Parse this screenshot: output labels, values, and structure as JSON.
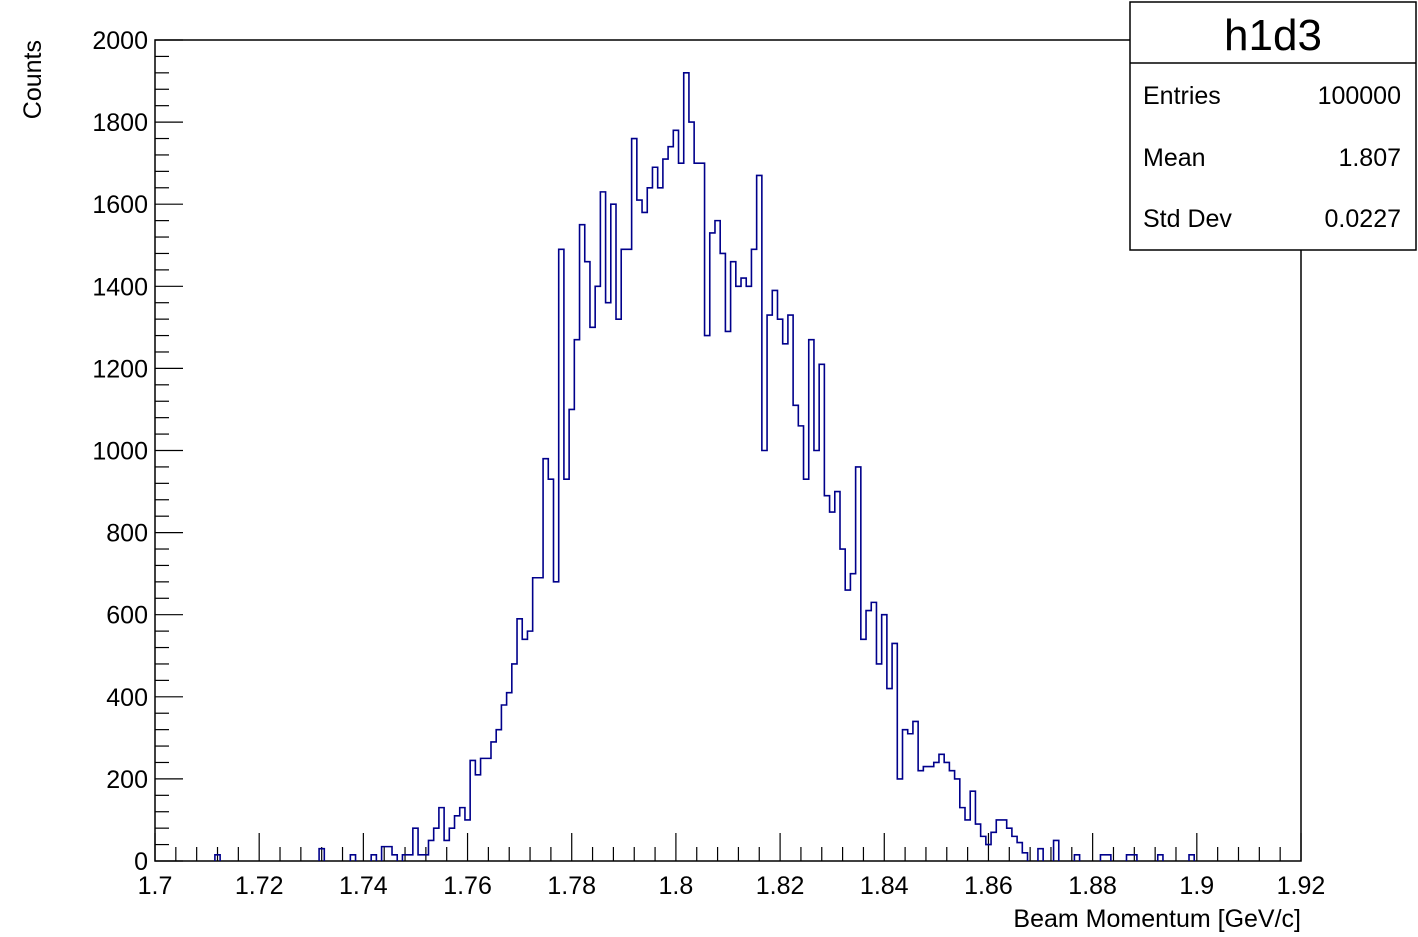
{
  "chart_data": {
    "type": "histogram",
    "xlabel": "Beam Momentum [GeV/c]",
    "ylabel": "Counts",
    "xlim": [
      1.7,
      1.92
    ],
    "ylim": [
      0,
      2000
    ],
    "xticks": [
      "1.7",
      "1.72",
      "1.74",
      "1.76",
      "1.78",
      "1.8",
      "1.82",
      "1.84",
      "1.86",
      "1.88",
      "1.9",
      "1.92"
    ],
    "yticks": [
      "0",
      "200",
      "400",
      "600",
      "800",
      "1000",
      "1200",
      "1400",
      "1600",
      "1800",
      "2000"
    ],
    "grid": false,
    "line_color": "#00008b",
    "bin_width": 0.001,
    "bins": [
      [
        1.712,
        15
      ],
      [
        1.732,
        30
      ],
      [
        1.738,
        15
      ],
      [
        1.742,
        15
      ],
      [
        1.744,
        35
      ],
      [
        1.745,
        35
      ],
      [
        1.746,
        15
      ],
      [
        1.748,
        15
      ],
      [
        1.749,
        15
      ],
      [
        1.75,
        80
      ],
      [
        1.751,
        15
      ],
      [
        1.752,
        15
      ],
      [
        1.753,
        50
      ],
      [
        1.754,
        80
      ],
      [
        1.755,
        130
      ],
      [
        1.756,
        50
      ],
      [
        1.757,
        80
      ],
      [
        1.758,
        110
      ],
      [
        1.759,
        130
      ],
      [
        1.76,
        100
      ],
      [
        1.761,
        245
      ],
      [
        1.762,
        210
      ],
      [
        1.763,
        250
      ],
      [
        1.764,
        250
      ],
      [
        1.765,
        290
      ],
      [
        1.766,
        320
      ],
      [
        1.767,
        380
      ],
      [
        1.768,
        410
      ],
      [
        1.769,
        480
      ],
      [
        1.77,
        590
      ],
      [
        1.771,
        540
      ],
      [
        1.772,
        560
      ],
      [
        1.773,
        690
      ],
      [
        1.774,
        690
      ],
      [
        1.775,
        980
      ],
      [
        1.776,
        930
      ],
      [
        1.777,
        680
      ],
      [
        1.778,
        1490
      ],
      [
        1.779,
        930
      ],
      [
        1.78,
        1100
      ],
      [
        1.781,
        1270
      ],
      [
        1.782,
        1550
      ],
      [
        1.783,
        1460
      ],
      [
        1.784,
        1300
      ],
      [
        1.785,
        1400
      ],
      [
        1.786,
        1630
      ],
      [
        1.787,
        1360
      ],
      [
        1.788,
        1600
      ],
      [
        1.789,
        1320
      ],
      [
        1.79,
        1490
      ],
      [
        1.791,
        1490
      ],
      [
        1.792,
        1760
      ],
      [
        1.793,
        1610
      ],
      [
        1.794,
        1580
      ],
      [
        1.795,
        1640
      ],
      [
        1.796,
        1690
      ],
      [
        1.797,
        1640
      ],
      [
        1.798,
        1710
      ],
      [
        1.799,
        1740
      ],
      [
        1.8,
        1780
      ],
      [
        1.801,
        1700
      ],
      [
        1.802,
        1920
      ],
      [
        1.803,
        1800
      ],
      [
        1.804,
        1700
      ],
      [
        1.805,
        1700
      ],
      [
        1.806,
        1280
      ],
      [
        1.807,
        1530
      ],
      [
        1.808,
        1560
      ],
      [
        1.809,
        1480
      ],
      [
        1.81,
        1290
      ],
      [
        1.811,
        1460
      ],
      [
        1.812,
        1400
      ],
      [
        1.813,
        1420
      ],
      [
        1.814,
        1400
      ],
      [
        1.815,
        1490
      ],
      [
        1.816,
        1670
      ],
      [
        1.817,
        1000
      ],
      [
        1.818,
        1330
      ],
      [
        1.819,
        1390
      ],
      [
        1.82,
        1320
      ],
      [
        1.821,
        1260
      ],
      [
        1.822,
        1330
      ],
      [
        1.823,
        1110
      ],
      [
        1.824,
        1060
      ],
      [
        1.825,
        930
      ],
      [
        1.826,
        1270
      ],
      [
        1.827,
        1000
      ],
      [
        1.828,
        1210
      ],
      [
        1.829,
        890
      ],
      [
        1.83,
        850
      ],
      [
        1.831,
        900
      ],
      [
        1.832,
        760
      ],
      [
        1.833,
        660
      ],
      [
        1.834,
        700
      ],
      [
        1.835,
        960
      ],
      [
        1.836,
        540
      ],
      [
        1.837,
        610
      ],
      [
        1.838,
        630
      ],
      [
        1.839,
        480
      ],
      [
        1.84,
        600
      ],
      [
        1.841,
        420
      ],
      [
        1.842,
        530
      ],
      [
        1.843,
        200
      ],
      [
        1.844,
        320
      ],
      [
        1.845,
        310
      ],
      [
        1.846,
        340
      ],
      [
        1.847,
        220
      ],
      [
        1.848,
        230
      ],
      [
        1.849,
        230
      ],
      [
        1.85,
        240
      ],
      [
        1.851,
        260
      ],
      [
        1.852,
        240
      ],
      [
        1.853,
        220
      ],
      [
        1.854,
        200
      ],
      [
        1.855,
        130
      ],
      [
        1.856,
        100
      ],
      [
        1.857,
        170
      ],
      [
        1.858,
        90
      ],
      [
        1.859,
        60
      ],
      [
        1.86,
        40
      ],
      [
        1.861,
        70
      ],
      [
        1.862,
        100
      ],
      [
        1.863,
        100
      ],
      [
        1.864,
        80
      ],
      [
        1.865,
        60
      ],
      [
        1.866,
        45
      ],
      [
        1.867,
        20
      ],
      [
        1.87,
        30
      ],
      [
        1.873,
        50
      ],
      [
        1.877,
        15
      ],
      [
        1.882,
        15
      ],
      [
        1.883,
        15
      ],
      [
        1.887,
        15
      ],
      [
        1.888,
        15
      ],
      [
        1.893,
        15
      ],
      [
        1.899,
        15
      ]
    ],
    "stats": {
      "title": "h1d3",
      "rows": [
        {
          "label": "Entries",
          "value": "100000"
        },
        {
          "label": "Mean",
          "value": "1.807"
        },
        {
          "label": "Std Dev",
          "value": "0.0227"
        }
      ]
    }
  }
}
